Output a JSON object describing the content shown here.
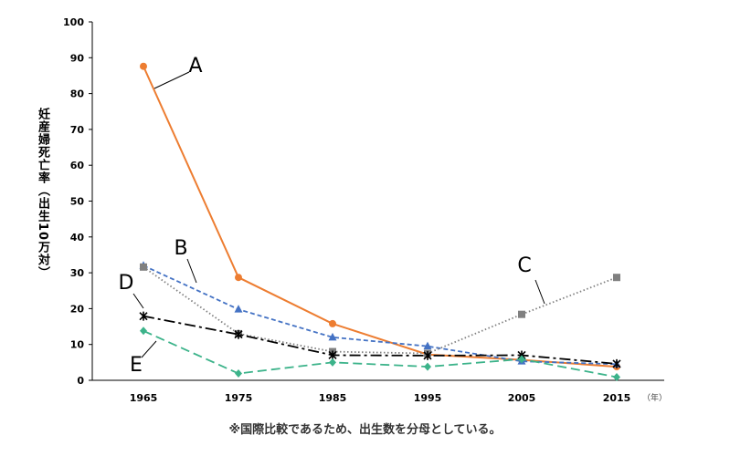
{
  "chart_data": {
    "type": "line",
    "title": "",
    "xlabel": "",
    "ylabel": "妊産婦死亡率（出生10万対）",
    "x_unit": "（年）",
    "footnote": "※国際比較であるため、出生数を分母としている。",
    "x": [
      1965,
      1975,
      1985,
      1995,
      2005,
      2015
    ],
    "ylim": [
      0,
      100
    ],
    "yticks": [
      0,
      10,
      20,
      30,
      40,
      50,
      60,
      70,
      80,
      90,
      100
    ],
    "grid": false,
    "legend": "none",
    "series": [
      {
        "name": "A",
        "color": "#ED7D31",
        "marker": "circle",
        "dash": "solid",
        "values": [
          87.6,
          28.7,
          15.8,
          7.2,
          5.7,
          3.8
        ]
      },
      {
        "name": "B",
        "color": "#4472C4",
        "marker": "triangle",
        "dash": "dashed",
        "values": [
          32.0,
          19.8,
          12.0,
          9.5,
          5.3,
          4.5
        ]
      },
      {
        "name": "C",
        "color": "#808080",
        "marker": "square",
        "dash": "dotted",
        "values": [
          31.6,
          13.0,
          8.0,
          7.5,
          18.4,
          28.7
        ]
      },
      {
        "name": "D",
        "color": "#000000",
        "marker": "asterisk",
        "dash": "dashdot",
        "values": [
          17.9,
          12.8,
          7.0,
          6.9,
          7.0,
          4.6
        ]
      },
      {
        "name": "E",
        "color": "#3CB38A",
        "marker": "diamond",
        "dash": "longdash",
        "values": [
          13.8,
          1.9,
          5.0,
          3.8,
          5.9,
          0.9
        ]
      }
    ]
  }
}
